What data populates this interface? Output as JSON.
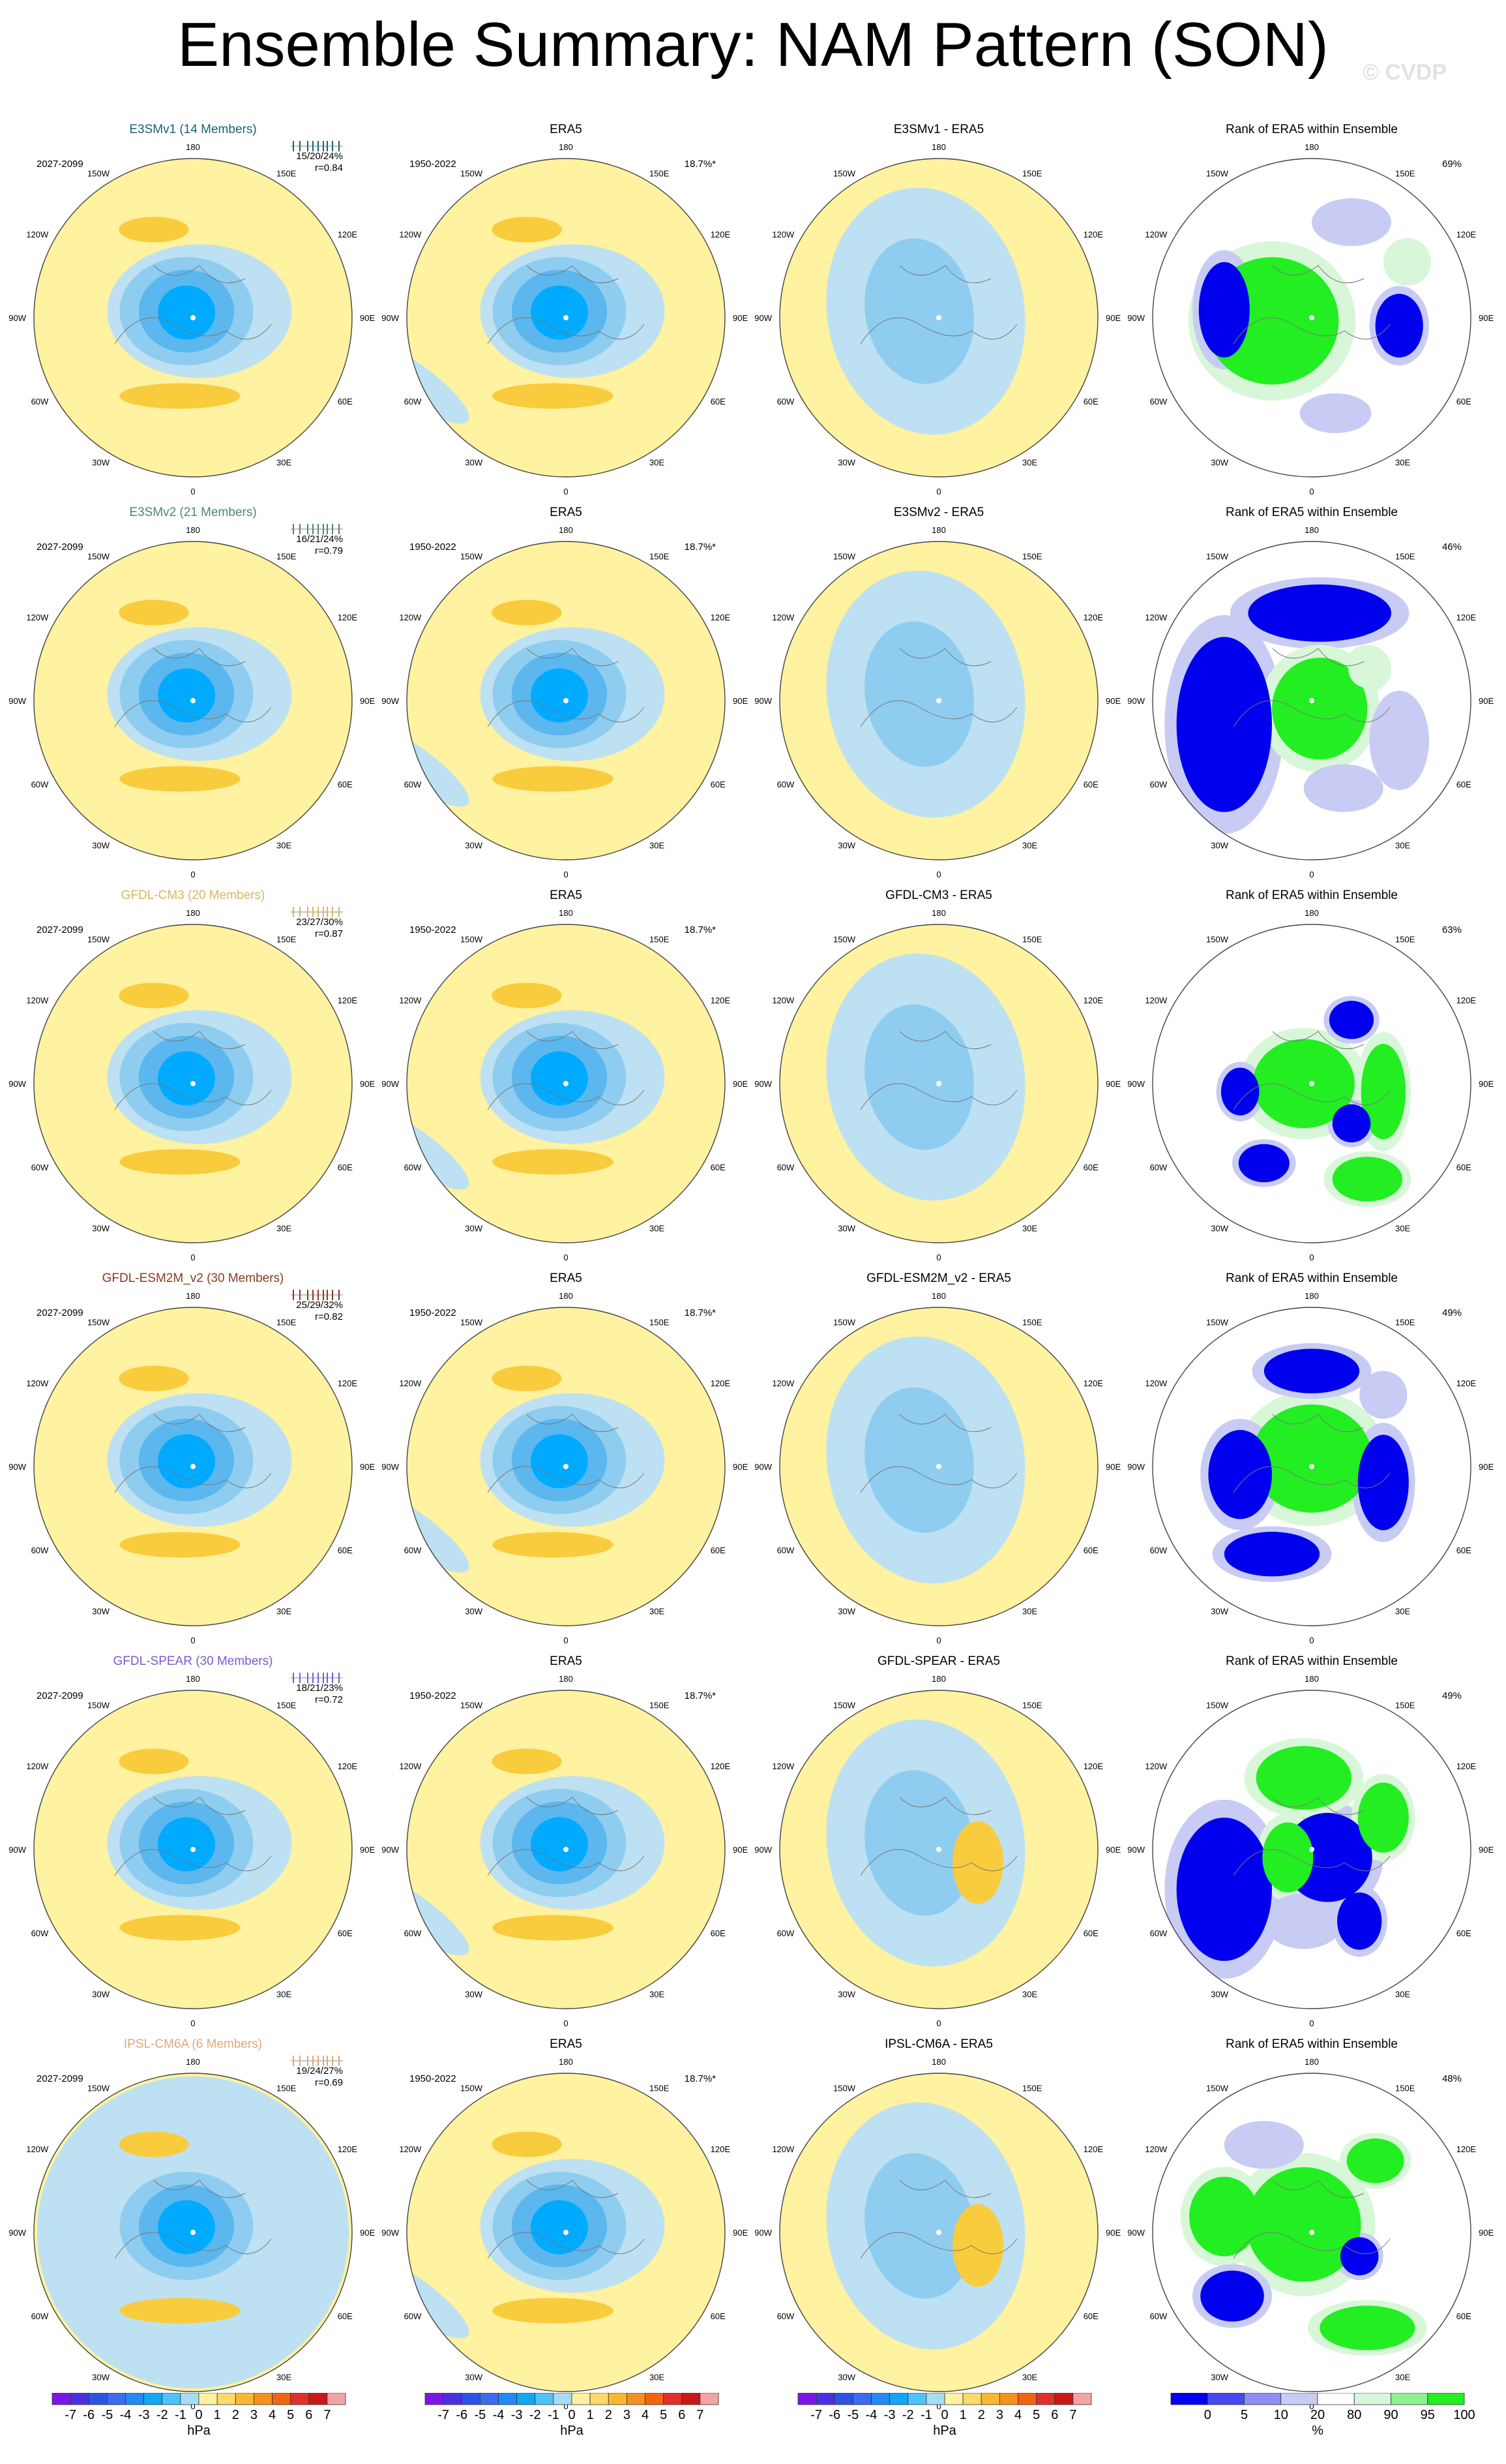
{
  "page": {
    "title": "Ensemble Summary: NAM Pattern (SON)",
    "watermark": "© CVDP"
  },
  "map_labels": [
    "180",
    "150E",
    "120E",
    "90E",
    "60E",
    "30E",
    "0",
    "30W",
    "60W",
    "90W",
    "120W",
    "150W"
  ],
  "obs_title": "ERA5",
  "rank_title": "Rank of ERA5 within Ensemble",
  "obs_years": "1950-2022",
  "obs_pct": "18.7%*",
  "model_years": "2027-2099",
  "colors": {
    "ocean_yellow": "#fff2a0",
    "neg1": "#bde1f2",
    "neg2": "#8fcdf0",
    "neg3": "#5cb7ee",
    "neg4": "#1e9eea",
    "neg5": "#00aaff",
    "pos2": "#f8cc3c",
    "rank_blue": "#0000ee",
    "rank_lightblue": "#c8ccf4",
    "rank_green": "#22ee22",
    "rank_lightgreen": "#d8f7d8"
  },
  "rows": [
    {
      "model": "E3SMv1 (14 Members)",
      "color": "#1a5f7a",
      "stats": "15/20/24%",
      "r": "r=0.84",
      "diff": "E3SMv1 - ERA5",
      "rank_pct": "69%"
    },
    {
      "model": "E3SMv2 (21 Members)",
      "color": "#4e8a5e",
      "stats": "16/21/24%",
      "r": "r=0.79",
      "diff": "E3SMv2 - ERA5",
      "rank_pct": "46%"
    },
    {
      "model": "GFDL-CM3 (20 Members)",
      "color": "#d6b860",
      "stats": "23/27/30%",
      "r": "r=0.87",
      "diff": "GFDL-CM3 - ERA5",
      "rank_pct": "63%"
    },
    {
      "model": "GFDL-ESM2M_v2 (30 Members)",
      "color": "#8b3a1a",
      "stats": "25/29/32%",
      "r": "r=0.82",
      "diff": "GFDL-ESM2M_v2 - ERA5",
      "rank_pct": "49%"
    },
    {
      "model": "GFDL-SPEAR (30 Members)",
      "color": "#7a5ad0",
      "stats": "18/21/23%",
      "r": "r=0.72",
      "diff": "GFDL-SPEAR - ERA5",
      "rank_pct": "49%"
    },
    {
      "model": "IPSL-CM6A (6 Members)",
      "color": "#e0a878",
      "stats": "19/24/27%",
      "r": "r=0.69",
      "diff": "IPSL-CM6A - ERA5",
      "rank_pct": "48%"
    }
  ],
  "colorbar_hpa": {
    "unit": "hPa",
    "ticks": [
      "-7",
      "-6",
      "-5",
      "-4",
      "-3",
      "-2",
      "-1",
      "0",
      "1",
      "2",
      "3",
      "4",
      "5",
      "6",
      "7"
    ],
    "colors": [
      "#7a17e6",
      "#4b2fe3",
      "#2f52e6",
      "#3a6cf0",
      "#2389f3",
      "#10a7f5",
      "#4fc3f7",
      "#a7dcf5",
      "#fff2a0",
      "#fbd96a",
      "#f8b830",
      "#f59120",
      "#f26414",
      "#e0302a",
      "#c81818",
      "#f2a4a4"
    ]
  },
  "colorbar_rank": {
    "unit": "%",
    "ticks": [
      "0",
      "5",
      "10",
      "20",
      "80",
      "90",
      "95",
      "100"
    ],
    "colors": [
      "#0000ee",
      "#4848f0",
      "#8c8ef4",
      "#c8ccf4",
      "#ffffff",
      "#d8f7d8",
      "#8ef08e",
      "#22ee22"
    ]
  }
}
